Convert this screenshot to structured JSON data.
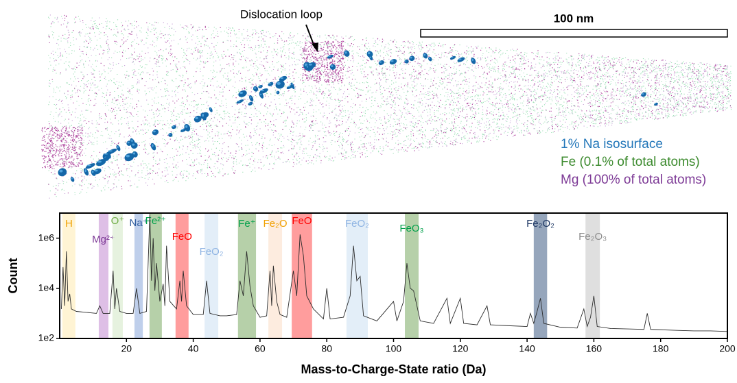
{
  "image": {
    "annotation": "Dislocation loop",
    "scale_bar": "100 nm",
    "legend": [
      {
        "label": "1% Na isosurface",
        "color": "#2276b9"
      },
      {
        "label": "Fe (0.1% of total atoms)",
        "color": "#3d8b2f"
      },
      {
        "label": "Mg (100% of total atoms)",
        "color": "#7d3a96"
      }
    ]
  },
  "chart_data": {
    "type": "line",
    "xlabel": "Mass-to-Charge-State ratio (Da)",
    "ylabel": "Count",
    "log_y": true,
    "color": "#2b2b2b",
    "xlim": [
      0,
      200
    ],
    "xticks": [
      20,
      40,
      60,
      80,
      100,
      120,
      140,
      160,
      180,
      200
    ],
    "ylim": [
      100,
      10000000
    ],
    "yticks": [
      {
        "value": 100,
        "label": "1e2"
      },
      {
        "value": 10000,
        "label": "1e4"
      },
      {
        "value": 1000000,
        "label": "1e6"
      }
    ],
    "x": [
      0.5,
      1,
      1.5,
      2,
      2.5,
      3,
      3.5,
      5,
      8,
      11,
      12,
      13,
      15,
      16,
      16.5,
      17,
      18,
      20,
      22,
      23,
      24,
      26,
      27,
      27.5,
      28,
      28.5,
      29,
      30,
      31,
      31.5,
      32,
      33,
      35,
      36,
      36.5,
      37,
      38,
      40,
      43,
      44,
      45,
      48,
      50,
      53,
      54,
      55,
      56,
      57,
      58,
      60,
      62,
      63,
      63.5,
      64,
      65,
      66,
      68,
      70,
      71,
      72,
      73,
      74,
      76,
      79,
      80,
      81,
      85,
      87,
      88,
      89,
      90,
      91,
      95,
      100,
      101,
      103,
      104,
      105,
      106,
      108,
      112,
      116,
      117,
      120,
      121,
      125,
      128,
      129,
      135,
      140,
      141,
      142,
      143,
      144,
      145,
      150,
      155,
      157,
      158,
      159,
      160,
      161,
      165,
      170,
      175,
      176,
      177,
      185,
      190,
      195,
      200
    ],
    "values": [
      1500,
      70000,
      2000,
      300000,
      3000,
      6000,
      1500,
      1200,
      1100,
      1000,
      2000,
      1000,
      1000,
      50000,
      1500,
      10000,
      1200,
      1000,
      1000,
      10000,
      1000,
      1200,
      9000000,
      20000,
      1000000,
      8000,
      100000,
      3000,
      15000,
      2000,
      500000,
      3000,
      1500,
      20000,
      3000,
      50000,
      2000,
      900,
      900,
      20000,
      1000,
      800,
      800,
      900,
      20000,
      5000,
      300000,
      12000,
      2000,
      700,
      800,
      50000,
      2000,
      80000,
      3000,
      900,
      700,
      50000,
      5000,
      1400000,
      200000,
      5000,
      1500,
      600,
      10000,
      600,
      700,
      5000,
      500000,
      20000,
      30000,
      800,
      500,
      3000,
      500,
      3000,
      100000,
      10000,
      8000,
      500,
      400,
      4000,
      400,
      4000,
      400,
      350,
      2000,
      350,
      320,
      300,
      1000,
      400,
      1200,
      4000,
      400,
      280,
      260,
      1500,
      300,
      700,
      5000,
      300,
      250,
      240,
      230,
      1000,
      230,
      210,
      200,
      200,
      190
    ],
    "regions": [
      {
        "label": "H",
        "range": [
          0.8,
          4.7
        ],
        "color": "#fff2cc",
        "label_color": "#f0a000"
      },
      {
        "label": "Mg²⁺",
        "range": [
          11.7,
          14.6
        ],
        "color": "#d8b4e2",
        "label_color": "#7d3a96"
      },
      {
        "label": "O⁺",
        "range": [
          15.8,
          18.9
        ],
        "color": "#e2f0d9",
        "label_color": "#70ad47"
      },
      {
        "label": "Na⁺",
        "range": [
          22.4,
          24.9
        ],
        "color": "#b4c7e7",
        "label_color": "#2e5c9e"
      },
      {
        "label": "Fe²⁺",
        "range": [
          26.9,
          30.6
        ],
        "color": "#a9c89a",
        "label_color": "#00a04a"
      },
      {
        "label": "FeO",
        "range": [
          34.7,
          38.6
        ],
        "color": "#ff8c8c",
        "label_color": "#ff0000"
      },
      {
        "label": "FeO₂",
        "range": [
          43.4,
          47.5
        ],
        "color": "#deebf7",
        "label_color": "#8fb4e3"
      },
      {
        "label": "Fe⁺",
        "range": [
          53.4,
          58.8
        ],
        "color": "#a9c89a",
        "label_color": "#00a04a"
      },
      {
        "label": "Fe₂O",
        "range": [
          62.5,
          66.6
        ],
        "color": "#fde9d9",
        "label_color": "#f0a000"
      },
      {
        "label": "FeO",
        "range": [
          69.5,
          75.6
        ],
        "color": "#ff8c8c",
        "label_color": "#ff0000"
      },
      {
        "label": "FeO₂",
        "range": [
          85.9,
          92.3
        ],
        "color": "#deebf7",
        "label_color": "#8fb4e3"
      },
      {
        "label": "FeO₃",
        "range": [
          103.4,
          107.5
        ],
        "color": "#a9c89a",
        "label_color": "#00a04a"
      },
      {
        "label": "Fe₂O₂",
        "range": [
          142,
          146
        ],
        "color": "#8497b0",
        "label_color": "#1f3864"
      },
      {
        "label": "Fe₂O₃",
        "range": [
          157.5,
          161.8
        ],
        "color": "#d9d9d9",
        "label_color": "#8c8c8c"
      }
    ]
  }
}
